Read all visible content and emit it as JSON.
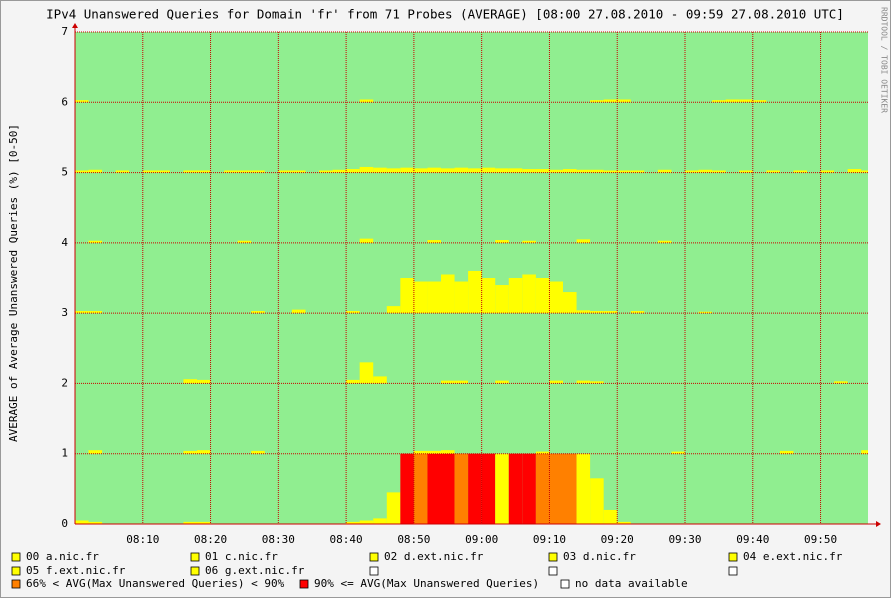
{
  "chart_data": {
    "type": "row-bars",
    "title": "IPv4 Unanswered Queries for Domain 'fr' from 71 Probes (AVERAGE)  [08:00 27.08.2010 - 09:59 27.08.2010 UTC]",
    "y_label": "AVERAGE of Average Unanswered Queries (%) [0-50]",
    "watermark": "RRDTOOL / TOBI OETIKER",
    "background": "#90ee90",
    "grid_color": "#cc0000",
    "grid": true,
    "xlim": [
      0,
      117
    ],
    "xticks": [
      {
        "value": 10,
        "label": "08:10"
      },
      {
        "value": 20,
        "label": "08:20"
      },
      {
        "value": 30,
        "label": "08:30"
      },
      {
        "value": 40,
        "label": "08:40"
      },
      {
        "value": 50,
        "label": "08:50"
      },
      {
        "value": 60,
        "label": "09:00"
      },
      {
        "value": 70,
        "label": "09:10"
      },
      {
        "value": 80,
        "label": "09:20"
      },
      {
        "value": 90,
        "label": "09:30"
      },
      {
        "value": 100,
        "label": "09:40"
      },
      {
        "value": 110,
        "label": "09:50"
      }
    ],
    "ylim": [
      0,
      7
    ],
    "yticks": [
      0,
      1,
      2,
      3,
      4,
      5,
      6,
      7
    ],
    "x": [
      0,
      2,
      4,
      6,
      8,
      10,
      12,
      14,
      16,
      18,
      20,
      22,
      24,
      26,
      28,
      30,
      32,
      34,
      36,
      38,
      40,
      42,
      44,
      46,
      48,
      50,
      52,
      54,
      56,
      58,
      60,
      62,
      64,
      66,
      68,
      70,
      72,
      74,
      76,
      78,
      80,
      82,
      84,
      86,
      88,
      90,
      92,
      94,
      96,
      98,
      100,
      102,
      104,
      106,
      108,
      110,
      112,
      114,
      116
    ],
    "series": [
      {
        "name": "00 a.nic.fr",
        "color": "#ffff00",
        "values": [
          0.05,
          0.03,
          0,
          0,
          0,
          0,
          0,
          0,
          0.03,
          0.03,
          0,
          0,
          0,
          0,
          0,
          0,
          0,
          0,
          0,
          0,
          0.03,
          0.05,
          0.08,
          0.45,
          1,
          1,
          1,
          1,
          1,
          1,
          1,
          1,
          1,
          1,
          1,
          1,
          1,
          1,
          0.65,
          0.2,
          0.03,
          0,
          0,
          0,
          0,
          0,
          0,
          0,
          0,
          0,
          0,
          0,
          0,
          0,
          0,
          0,
          0,
          0,
          0
        ],
        "value_colors": [
          "#ffff00",
          "#ffff00",
          "#ffff00",
          "#ffff00",
          "#ffff00",
          "#ffff00",
          "#ffff00",
          "#ffff00",
          "#ffff00",
          "#ffff00",
          "#ffff00",
          "#ffff00",
          "#ffff00",
          "#ffff00",
          "#ffff00",
          "#ffff00",
          "#ffff00",
          "#ffff00",
          "#ffff00",
          "#ffff00",
          "#ffff00",
          "#ffff00",
          "#ffff00",
          "#ffff00",
          "#ff0000",
          "#ff8000",
          "#ff0000",
          "#ff0000",
          "#ff8000",
          "#ff0000",
          "#ff0000",
          "#ffff00",
          "#ff0000",
          "#ff0000",
          "#ff8000",
          "#ff8000",
          "#ff8000",
          "#ffff00",
          "#ffff00",
          "#ffff00",
          "#ffff00",
          "#ffff00",
          "#ffff00",
          "#ffff00",
          "#ffff00",
          "#ffff00",
          "#ffff00",
          "#ffff00",
          "#ffff00",
          "#ffff00",
          "#ffff00",
          "#ffff00",
          "#ffff00",
          "#ffff00",
          "#ffff00",
          "#ffff00",
          "#ffff00",
          "#ffff00",
          "#ffff00"
        ]
      },
      {
        "name": "01 c.nic.fr",
        "color": "#ffff00",
        "values": [
          0,
          0.05,
          0,
          0,
          0,
          0,
          0,
          0,
          0.04,
          0.05,
          0,
          0,
          0,
          0.04,
          0,
          0,
          0,
          0,
          0,
          0,
          0,
          0,
          0,
          0,
          0,
          0.04,
          0.04,
          0.05,
          0,
          0,
          0,
          0,
          0,
          0,
          0.03,
          0,
          0,
          0,
          0,
          0,
          0,
          0,
          0,
          0,
          0.03,
          0,
          0,
          0,
          0,
          0,
          0,
          0,
          0.04,
          0,
          0,
          0,
          0,
          0,
          0.05
        ]
      },
      {
        "name": "02 d.ext.nic.fr",
        "color": "#ffff00",
        "values": [
          0,
          0,
          0,
          0,
          0,
          0,
          0,
          0,
          0.06,
          0.05,
          0,
          0,
          0,
          0,
          0,
          0,
          0,
          0,
          0,
          0,
          0.05,
          0.3,
          0.1,
          0,
          0,
          0,
          0,
          0.04,
          0.04,
          0,
          0,
          0.04,
          0,
          0,
          0,
          0.04,
          0,
          0.04,
          0.03,
          0,
          0,
          0,
          0,
          0,
          0,
          0,
          0,
          0,
          0,
          0,
          0,
          0,
          0,
          0,
          0,
          0,
          0.03,
          0,
          0
        ]
      },
      {
        "name": "03 d.nic.fr",
        "color": "#ffff00",
        "values": [
          0.03,
          0.03,
          0,
          0,
          0,
          0,
          0,
          0,
          0,
          0,
          0,
          0,
          0,
          0.03,
          0,
          0,
          0.05,
          0,
          0,
          0,
          0.03,
          0,
          0,
          0.1,
          0.5,
          0.45,
          0.45,
          0.55,
          0.45,
          0.6,
          0.5,
          0.4,
          0.5,
          0.55,
          0.5,
          0.45,
          0.3,
          0.04,
          0.03,
          0.03,
          0,
          0.03,
          0,
          0,
          0,
          0,
          0.02,
          0,
          0,
          0,
          0,
          0,
          0,
          0,
          0,
          0,
          0,
          0,
          0
        ]
      },
      {
        "name": "04 e.ext.nic.fr",
        "color": "#ffff00",
        "values": [
          0,
          0.03,
          0,
          0,
          0,
          0,
          0,
          0,
          0,
          0,
          0,
          0,
          0.03,
          0,
          0,
          0,
          0,
          0,
          0,
          0,
          0,
          0.06,
          0,
          0,
          0,
          0,
          0.04,
          0,
          0,
          0,
          0,
          0.04,
          0,
          0.03,
          0,
          0,
          0,
          0.05,
          0,
          0,
          0,
          0,
          0,
          0.03,
          0,
          0,
          0,
          0,
          0,
          0,
          0,
          0,
          0,
          0,
          0,
          0,
          0,
          0,
          0
        ]
      },
      {
        "name": "05 f.ext.nic.fr",
        "color": "#ffff00",
        "values": [
          0.03,
          0.04,
          0,
          0.03,
          0,
          0.03,
          0.03,
          0,
          0.03,
          0.03,
          0,
          0.03,
          0.03,
          0.03,
          0,
          0.03,
          0.03,
          0,
          0.03,
          0.04,
          0.05,
          0.08,
          0.07,
          0.06,
          0.07,
          0.06,
          0.07,
          0.06,
          0.07,
          0.06,
          0.07,
          0.06,
          0.06,
          0.05,
          0.05,
          0.04,
          0.05,
          0.04,
          0.04,
          0.03,
          0.03,
          0.03,
          0,
          0.04,
          0,
          0.03,
          0.04,
          0.03,
          0,
          0.03,
          0,
          0.03,
          0,
          0.03,
          0,
          0.03,
          0,
          0.05,
          0.03
        ]
      },
      {
        "name": "06 g.ext.nic.fr",
        "color": "#ffff00",
        "values": [
          0.03,
          0,
          0,
          0,
          0,
          0,
          0,
          0,
          0,
          0,
          0,
          0,
          0,
          0,
          0,
          0,
          0,
          0,
          0,
          0,
          0,
          0.04,
          0,
          0,
          0,
          0,
          0,
          0,
          0,
          0,
          0,
          0,
          0,
          0,
          0,
          0,
          0,
          0,
          0.03,
          0.04,
          0.04,
          0,
          0,
          0,
          0,
          0,
          0,
          0.03,
          0.04,
          0.04,
          0.03,
          0,
          0,
          0,
          0,
          0,
          0,
          0,
          0
        ]
      }
    ],
    "levels": [
      {
        "name": "66% < AVG(Max Unanswered Queries) < 90%",
        "color": "#ff8000"
      },
      {
        "name": "90% <= AVG(Max Unanswered Queries)",
        "color": "#ff0000"
      }
    ],
    "no_data_label": "no data available"
  }
}
